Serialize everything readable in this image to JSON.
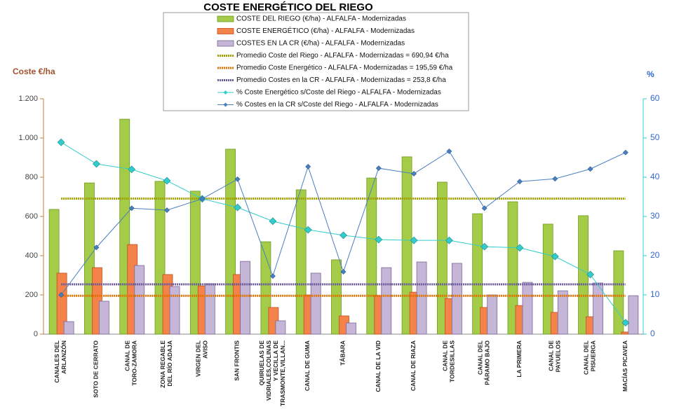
{
  "chart_data": {
    "type": "bar",
    "title": "COSTE ENERGÉTICO DEL RIEGO",
    "ylabel": "Coste €/ha",
    "y2label": "%",
    "categories": [
      "CANALES DEL ARLANZÓN",
      "SOTO DE CERRATO",
      "CANAL DE TORO-ZAMORA",
      "ZONA REGABLE DEL RÍO ADAJA",
      "VIRGEN DEL AVISO",
      "SAN FRONTIS",
      "QUIRUELAS DE VIDRIALES,COLINAS Y VECILLA DE TRASMONTE,VILLAN...",
      "CANAL DE GUMA",
      "TÁBARA",
      "CANAL DE LA VID",
      "CANAL DE RIAZA",
      "CANAL DE TORDESILLAS",
      "CANAL DEL PÁRAMO BAJO",
      "LA PRIMERA",
      "CANAL DE PAYUELOS",
      "CANAL DEL PISUERGA",
      "MACÍAS PICAVEA"
    ],
    "series": [
      {
        "name": "COSTE DEL RIEGO (€/ha) - ALFALFA - Modernizadas",
        "type": "bar",
        "color": "#a4cc48",
        "values": [
          636,
          771,
          1096,
          779,
          729,
          943,
          471,
          736,
          379,
          796,
          904,
          775,
          614,
          675,
          561,
          604,
          425
        ]
      },
      {
        "name": "COSTE ENERGÉTICO (€/ha) - ALFALFA - Modernizadas",
        "type": "bar",
        "color": "#f4834a",
        "values": [
          311,
          339,
          457,
          304,
          246,
          304,
          136,
          200,
          93,
          196,
          214,
          182,
          136,
          146,
          111,
          89,
          11
        ]
      },
      {
        "name": "COSTES EN LA CR (€/ha) - ALFALFA - Modernizadas",
        "type": "bar",
        "color": "#c5b6d8",
        "values": [
          64,
          168,
          350,
          243,
          257,
          371,
          68,
          311,
          57,
          339,
          368,
          361,
          200,
          264,
          221,
          261,
          196
        ]
      },
      {
        "name": "% Coste Energético s/Coste del Riego - ALFALFA - Modernizadas",
        "type": "line",
        "axis": "y2",
        "color": "#33cccc",
        "values": [
          48.9,
          43.4,
          42.0,
          39.1,
          34.5,
          32.3,
          28.8,
          26.6,
          25.2,
          24.1,
          23.9,
          23.9,
          22.3,
          22.0,
          19.8,
          15.2,
          2.9
        ]
      },
      {
        "name": "% Costes en la CR s/Coste del Riego - ALFALFA - Modernizadas",
        "type": "line",
        "axis": "y2",
        "color": "#4a7fc0",
        "values": [
          10.0,
          22.1,
          32.1,
          31.6,
          34.5,
          39.5,
          14.8,
          42.7,
          15.9,
          42.3,
          40.9,
          46.6,
          32.1,
          38.9,
          39.6,
          42.1,
          46.3
        ]
      }
    ],
    "reference_lines": [
      {
        "name": "Promedio Coste del Riego - ALFALFA - Modernizadas = 690,94 €/ha",
        "color": "#a0a000",
        "value": 690.94
      },
      {
        "name": "Promedio Coste Energético - ALFALFA - Modernizadas = 195,59 €/ha",
        "color": "#e07000",
        "value": 195.59
      },
      {
        "name": "Promedio Costes en la CR - ALFALFA - Modernizadas = 253,8 €/ha",
        "color": "#6a5a9a",
        "value": 253.8
      }
    ],
    "ylim": [
      0,
      1200
    ],
    "yticks": [
      0,
      200,
      400,
      600,
      800,
      {
        "value": 1000,
        "label": "1.000"
      },
      {
        "value": 1200,
        "label": "1.200"
      }
    ],
    "y2lim": [
      0,
      60
    ],
    "y2ticks": [
      0,
      10,
      20,
      30,
      40,
      50,
      60
    ]
  }
}
